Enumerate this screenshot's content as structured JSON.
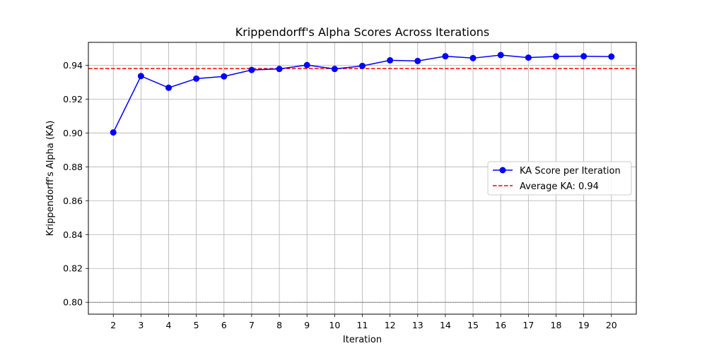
{
  "chart_data": {
    "type": "line",
    "title": "Krippendorff's Alpha Scores Across Iterations",
    "xlabel": "Iteration",
    "ylabel": "Krippendorff's Alpha (KA)",
    "x": [
      2,
      3,
      4,
      5,
      6,
      7,
      8,
      9,
      10,
      11,
      12,
      13,
      14,
      15,
      16,
      17,
      18,
      19,
      20
    ],
    "xlim": [
      1.1,
      20.9
    ],
    "ylim": [
      0.793,
      0.9535
    ],
    "yticks": [
      0.8,
      0.82,
      0.84,
      0.86,
      0.88,
      0.9,
      0.92,
      0.94
    ],
    "ytick_labels": [
      "0.80",
      "0.82",
      "0.84",
      "0.86",
      "0.88",
      "0.90",
      "0.92",
      "0.94"
    ],
    "grid": true,
    "series": [
      {
        "name": "KA Score per Iteration",
        "values": [
          0.9003,
          0.9336,
          0.9267,
          0.9321,
          0.9334,
          0.9372,
          0.9378,
          0.9401,
          0.9378,
          0.9396,
          0.9429,
          0.9425,
          0.9453,
          0.9442,
          0.946,
          0.9445,
          0.9452,
          0.9453,
          0.9451
        ],
        "color": "#0000ff",
        "style": "line-marker"
      }
    ],
    "reference_lines": [
      {
        "name": "Average KA: 0.94",
        "value": 0.938,
        "color": "#ff0000",
        "style": "dashed"
      },
      {
        "name": "",
        "value": 0.8,
        "color": "#000000",
        "style": "dotted"
      }
    ],
    "legend": {
      "placement": "center-right",
      "entries": [
        "KA Score per Iteration",
        "Average KA: 0.94"
      ]
    }
  }
}
